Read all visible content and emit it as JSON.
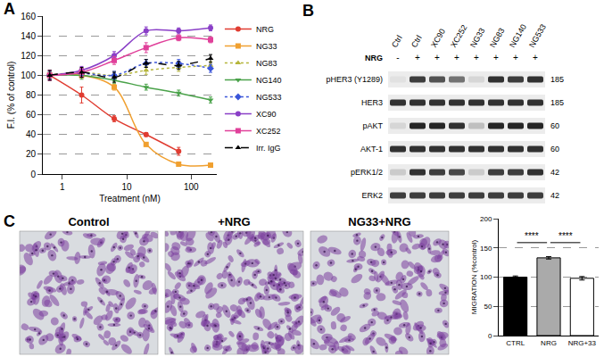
{
  "chart_data": [
    {
      "label": "A",
      "type": "line",
      "x": [
        0.64,
        2,
        6.4,
        20,
        64,
        200
      ],
      "xlabel": "Treatment (nM)",
      "ylabel": "F.I. (% of control)",
      "log": "x",
      "xlim": [
        0.5,
        250
      ],
      "xticks": [
        1,
        10,
        100
      ],
      "ylim": [
        0,
        160
      ],
      "yticks": [
        0,
        20,
        40,
        60,
        80,
        100,
        120,
        140,
        160
      ],
      "grid": true,
      "legend": "right",
      "series": [
        {
          "name": "NRG",
          "color": "#e03c31",
          "marker": "circle",
          "line_style": "solid",
          "values": [
            100,
            80,
            56,
            40,
            23,
            null
          ],
          "errors": [
            5,
            8,
            3,
            2,
            4,
            null
          ]
        },
        {
          "name": "NG33",
          "color": "#f0a030",
          "marker": "square",
          "line_style": "solid",
          "values": [
            100,
            100,
            88,
            30,
            10,
            9
          ],
          "errors": [
            3,
            3,
            3,
            2,
            1,
            1
          ]
        },
        {
          "name": "NG83",
          "color": "#b5b53b",
          "marker": "triangle-up",
          "line_style": "dot",
          "values": [
            100,
            103,
            100,
            105,
            108,
            110
          ],
          "errors": [
            4,
            4,
            4,
            4,
            4,
            4
          ]
        },
        {
          "name": "NG140",
          "color": "#4aa24a",
          "marker": "triangle-down",
          "line_style": "solid",
          "values": [
            100,
            100,
            95,
            88,
            82,
            75
          ],
          "errors": [
            4,
            4,
            3,
            3,
            3,
            3
          ]
        },
        {
          "name": "NG533",
          "color": "#3a55d9",
          "marker": "diamond",
          "line_style": "dot",
          "values": [
            100,
            102,
            100,
            112,
            112,
            107
          ],
          "errors": [
            4,
            4,
            4,
            4,
            4,
            4
          ]
        },
        {
          "name": "XC90",
          "color": "#8a3fc7",
          "marker": "circle",
          "line_style": "solid",
          "values": [
            100,
            105,
            120,
            145,
            145,
            148
          ],
          "errors": [
            5,
            4,
            4,
            4,
            3,
            3
          ]
        },
        {
          "name": "XC252",
          "color": "#e0409a",
          "marker": "square",
          "line_style": "solid",
          "values": [
            100,
            103,
            115,
            128,
            138,
            136
          ],
          "errors": [
            5,
            4,
            4,
            5,
            3,
            3
          ]
        },
        {
          "name": "Irr. IgG",
          "color": "#000000",
          "marker": "triangle-up",
          "line_style": "dash",
          "values": [
            100,
            103,
            98,
            112,
            110,
            117
          ],
          "errors": [
            5,
            5,
            5,
            4,
            4,
            4
          ]
        }
      ]
    },
    {
      "type": "bar",
      "categories": [
        "CTRL",
        "NRG",
        "NRG+33"
      ],
      "values": [
        100,
        133,
        98
      ],
      "errors": [
        2,
        2,
        3
      ],
      "colors": [
        "#000000",
        "#aaaaaa",
        "#ffffff"
      ],
      "ylabel": "MIGRATION (%control)",
      "ylim": [
        0,
        200
      ],
      "yticks": [
        0,
        50,
        100,
        150,
        200
      ],
      "grid": true,
      "significance": [
        {
          "from": 0,
          "to": 1,
          "text": "****"
        },
        {
          "from": 1,
          "to": 2,
          "text": "****"
        }
      ]
    }
  ],
  "blot": {
    "label": "B",
    "treatment": "NRG",
    "lanes": [
      {
        "name": "Ctrl",
        "treated": "-"
      },
      {
        "name": "Ctrl",
        "treated": "+"
      },
      {
        "name": "XC90",
        "treated": "+"
      },
      {
        "name": "XC252",
        "treated": "+"
      },
      {
        "name": "NG33",
        "treated": "+"
      },
      {
        "name": "NG83",
        "treated": "+"
      },
      {
        "name": "NG140",
        "treated": "+"
      },
      {
        "name": "NG533",
        "treated": "+"
      }
    ],
    "rows": [
      {
        "name": "pHER3 (Y1289)",
        "mw": 185,
        "intensity": [
          0.05,
          0.8,
          0.7,
          0.55,
          0.1,
          0.85,
          0.8,
          0.85
        ]
      },
      {
        "name": "HER3",
        "mw": 185,
        "intensity": [
          0.85,
          0.85,
          0.85,
          0.85,
          0.85,
          0.85,
          0.85,
          0.85
        ]
      },
      {
        "name": "pAKT",
        "mw": 60,
        "intensity": [
          0.1,
          0.9,
          0.9,
          0.85,
          0.2,
          0.9,
          0.9,
          0.9
        ]
      },
      {
        "name": "AKT-1",
        "mw": 60,
        "intensity": [
          0.85,
          0.85,
          0.85,
          0.85,
          0.85,
          0.85,
          0.85,
          0.85
        ]
      },
      {
        "name": "pERK1/2",
        "mw": 42,
        "intensity": [
          0.15,
          0.85,
          0.8,
          0.75,
          0.15,
          0.8,
          0.8,
          0.85
        ]
      },
      {
        "name": "ERK2",
        "mw": 42,
        "intensity": [
          0.8,
          0.8,
          0.8,
          0.8,
          0.8,
          0.8,
          0.8,
          0.8
        ]
      }
    ]
  },
  "micrographs": {
    "label": "C",
    "images": [
      "Control",
      "+NRG",
      "NG33+NRG"
    ]
  }
}
